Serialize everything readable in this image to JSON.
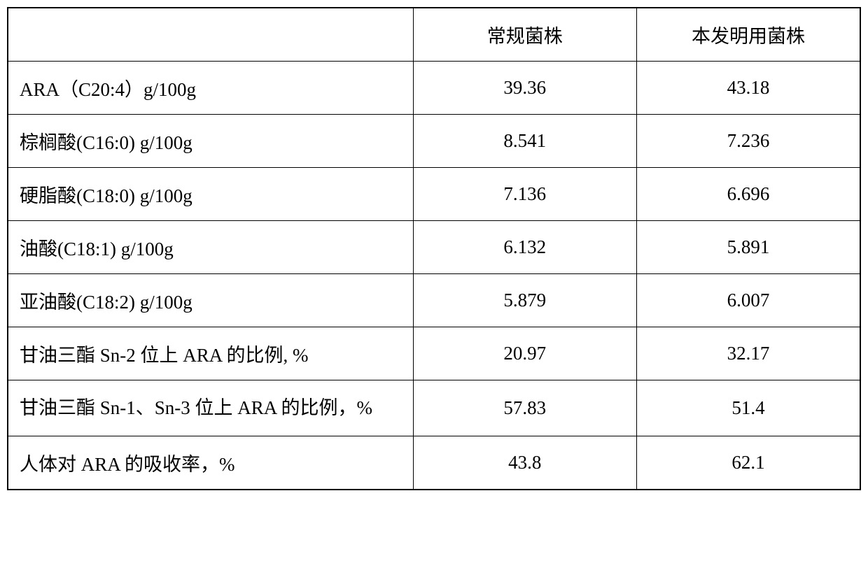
{
  "table": {
    "header": {
      "col1": "",
      "col2": "常规菌株",
      "col3": "本发明用菌株"
    },
    "rows": [
      {
        "label": "ARA（C20:4）g/100g",
        "col2": "39.36",
        "col3": "43.18"
      },
      {
        "label": "棕榈酸(C16:0) g/100g",
        "col2": "8.541",
        "col3": "7.236"
      },
      {
        "label": "硬脂酸(C18:0) g/100g",
        "col2": "7.136",
        "col3": "6.696"
      },
      {
        "label": "油酸(C18:1) g/100g",
        "col2": "6.132",
        "col3": "5.891"
      },
      {
        "label": "亚油酸(C18:2) g/100g",
        "col2": "5.879",
        "col3": "6.007"
      },
      {
        "label": "甘油三酯 Sn-2 位上 ARA 的比例, %",
        "col2": "20.97",
        "col3": "32.17"
      },
      {
        "label": "甘油三酯 Sn-1、Sn-3 位上 ARA 的比例，%",
        "col2": "57.83",
        "col3": "51.4",
        "multiline": true
      },
      {
        "label": "人体对 ARA 的吸收率，%",
        "col2": "43.8",
        "col3": "62.1"
      }
    ],
    "styling": {
      "border_color": "#000000",
      "background_color": "#ffffff",
      "text_color": "#000000",
      "font_family": "SimSun",
      "font_size": 27,
      "label_column_width": 580,
      "value_column_width": 320,
      "cell_padding": "18px 16px",
      "border_width": 1.5,
      "outer_border_width": 2,
      "label_align": "left",
      "value_align": "center"
    }
  }
}
